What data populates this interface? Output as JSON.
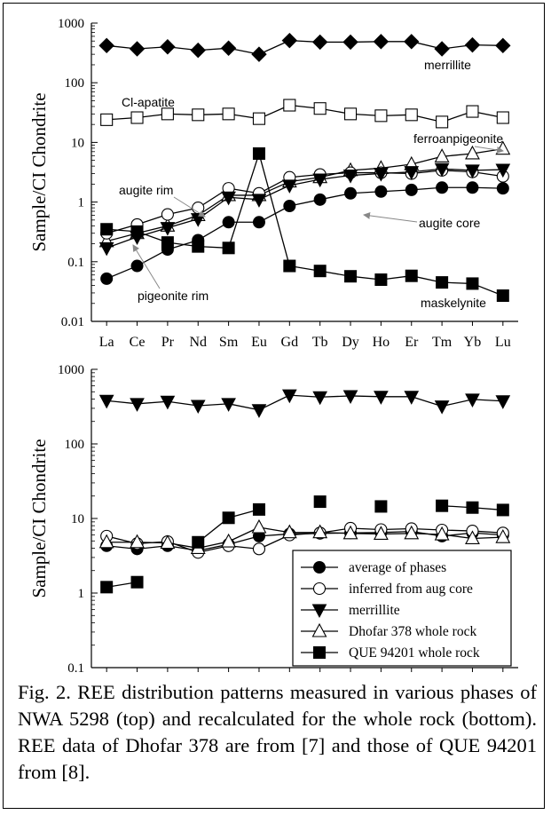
{
  "caption": "Fig. 2. REE distribution patterns measured in various phases of NWA 5298 (top) and recalculated for the whole rock (bottom). REE data of Dhofar 378 are from [7] and those of QUE 94201 from [8].",
  "chart_data": [
    {
      "type": "line",
      "title": "",
      "ylabel": "Sample/CI Chondrite",
      "xlabel": "",
      "y_scale": "log",
      "ylim": [
        0.01,
        1000
      ],
      "y_ticks": [
        "0.01",
        "0.1",
        "1",
        "10",
        "100",
        "1000"
      ],
      "categories": [
        "La",
        "Ce",
        "Pr",
        "Nd",
        "Sm",
        "Eu",
        "Gd",
        "Tb",
        "Dy",
        "Ho",
        "Er",
        "Tm",
        "Yb",
        "Lu"
      ],
      "series": [
        {
          "name": "merrillite",
          "marker": "diamond",
          "values": [
            420,
            370,
            400,
            350,
            380,
            300,
            510,
            480,
            480,
            490,
            490,
            370,
            430,
            420
          ]
        },
        {
          "name": "Cl-apatite",
          "marker": "open-square",
          "values": [
            24,
            26,
            30,
            29,
            30,
            25,
            42,
            37,
            30,
            28,
            29,
            22,
            33,
            26
          ]
        },
        {
          "name": "ferroanpigeonite",
          "marker": "open-triangle",
          "values": [
            0.22,
            0.3,
            0.4,
            0.6,
            1.3,
            1.3,
            2.2,
            2.6,
            3.4,
            3.7,
            4.3,
            5.8,
            6.5,
            7.8
          ]
        },
        {
          "name": "augite rim",
          "marker": "open-circle",
          "values": [
            0.3,
            0.42,
            0.62,
            0.8,
            1.7,
            1.4,
            2.6,
            2.9,
            3.1,
            3.1,
            3.0,
            3.4,
            3.2,
            2.7
          ]
        },
        {
          "name": "pigeonite rim",
          "marker": "filled-triangle-down",
          "values": [
            0.17,
            0.26,
            0.37,
            0.52,
            1.2,
            1.1,
            1.9,
            2.4,
            2.8,
            3.0,
            3.2,
            3.6,
            3.4,
            3.5
          ]
        },
        {
          "name": "augite core",
          "marker": "filled-circle",
          "values": [
            0.052,
            0.085,
            0.16,
            0.23,
            0.46,
            0.46,
            0.86,
            1.1,
            1.4,
            1.5,
            1.6,
            1.75,
            1.75,
            1.7
          ]
        },
        {
          "name": "maskelynite",
          "marker": "filled-square",
          "values": [
            0.35,
            0.32,
            0.21,
            0.18,
            0.17,
            6.5,
            0.085,
            0.07,
            0.057,
            0.05,
            0.058,
            0.045,
            0.043,
            0.027
          ]
        }
      ],
      "annotations": [
        "merrillite",
        "Cl-apatite",
        "ferroanpigeonite",
        "augite rim",
        "augite core",
        "pigeonite rim",
        "maskelynite"
      ]
    },
    {
      "type": "line",
      "title": "",
      "ylabel": "Sample/CI Chondrite",
      "xlabel": "",
      "y_scale": "log",
      "ylim": [
        0.1,
        1000
      ],
      "y_ticks": [
        "0.1",
        "1",
        "10",
        "100",
        "1000"
      ],
      "categories": [
        "La",
        "Ce",
        "Pr",
        "Nd",
        "Sm",
        "Eu",
        "Gd",
        "Tb",
        "Dy",
        "Ho",
        "Er",
        "Tm",
        "Yb",
        "Lu"
      ],
      "legend_position": "bottom-right",
      "series": [
        {
          "name": "average of phases",
          "marker": "filled-circle",
          "values": [
            4.3,
            3.9,
            4.3,
            3.7,
            4.5,
            5.8,
            6.2,
            6.3,
            6.4,
            6.5,
            6.7,
            5.8,
            6.4,
            6.0
          ]
        },
        {
          "name": "inferred from aug core",
          "marker": "open-circle",
          "values": [
            5.8,
            4.6,
            4.9,
            3.5,
            4.3,
            3.9,
            6.0,
            6.4,
            7.4,
            7.1,
            7.3,
            7.0,
            6.8,
            6.4
          ]
        },
        {
          "name": "merrillite",
          "marker": "filled-triangle-down",
          "values": [
            380,
            345,
            370,
            325,
            345,
            285,
            450,
            425,
            440,
            430,
            430,
            320,
            395,
            375
          ]
        },
        {
          "name": "Dhofar 378 whole rock",
          "marker": "open-triangle",
          "values": [
            4.8,
            4.8,
            4.7,
            4.0,
            4.9,
            7.6,
            6.5,
            6.5,
            6.3,
            6.2,
            6.3,
            6.1,
            5.4,
            5.6
          ]
        },
        {
          "name": "QUE 94201 whole rock",
          "marker": "filled-square",
          "values": [
            1.2,
            1.4,
            null,
            4.8,
            10.2,
            13.2,
            null,
            16.8,
            null,
            14.5,
            null,
            14.8,
            14.0,
            13.0
          ]
        }
      ]
    }
  ]
}
